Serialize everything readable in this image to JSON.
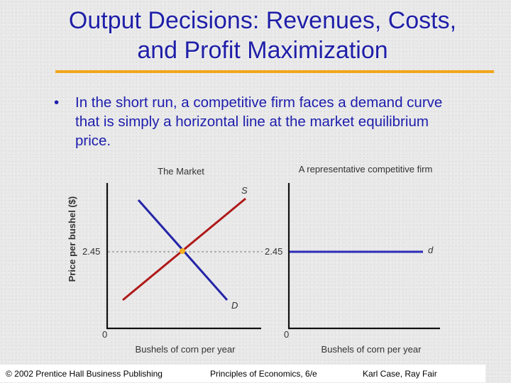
{
  "slide": {
    "title_line1": "Output Decisions:  Revenues, Costs,",
    "title_line2": "and Profit Maximization",
    "bullet_symbol": "•",
    "bullet_text": "In the short run, a competitive firm faces a demand curve that is simply a horizontal line at the market equilibrium price."
  },
  "diagram": {
    "market": {
      "title": "The Market",
      "y_axis_label": "Price per bushel ($)",
      "x_axis_label": "Bushels of corn per year",
      "origin_label": "0",
      "price_label": "2.45",
      "supply_label": "S",
      "demand_label": "D"
    },
    "firm": {
      "title": "A representative competitive firm",
      "x_axis_label": "Bushels of corn per year",
      "origin_label": "0",
      "price_label": "2.45",
      "demand_label": "d"
    }
  },
  "colors": {
    "title_text": "#1f1fa8",
    "title_rule": "#f2a51c",
    "supply_curve": "#b01818",
    "demand_curve": "#2424a8",
    "firm_demand": "#2c2cb8",
    "equilibrium_point": "#f2b020",
    "price_guide": "#8a8a8a"
  },
  "footer": {
    "left": "© 2002 Prentice Hall Business Publishing",
    "center": "Principles of Economics, 6/e",
    "right": "Karl Case, Ray Fair"
  }
}
